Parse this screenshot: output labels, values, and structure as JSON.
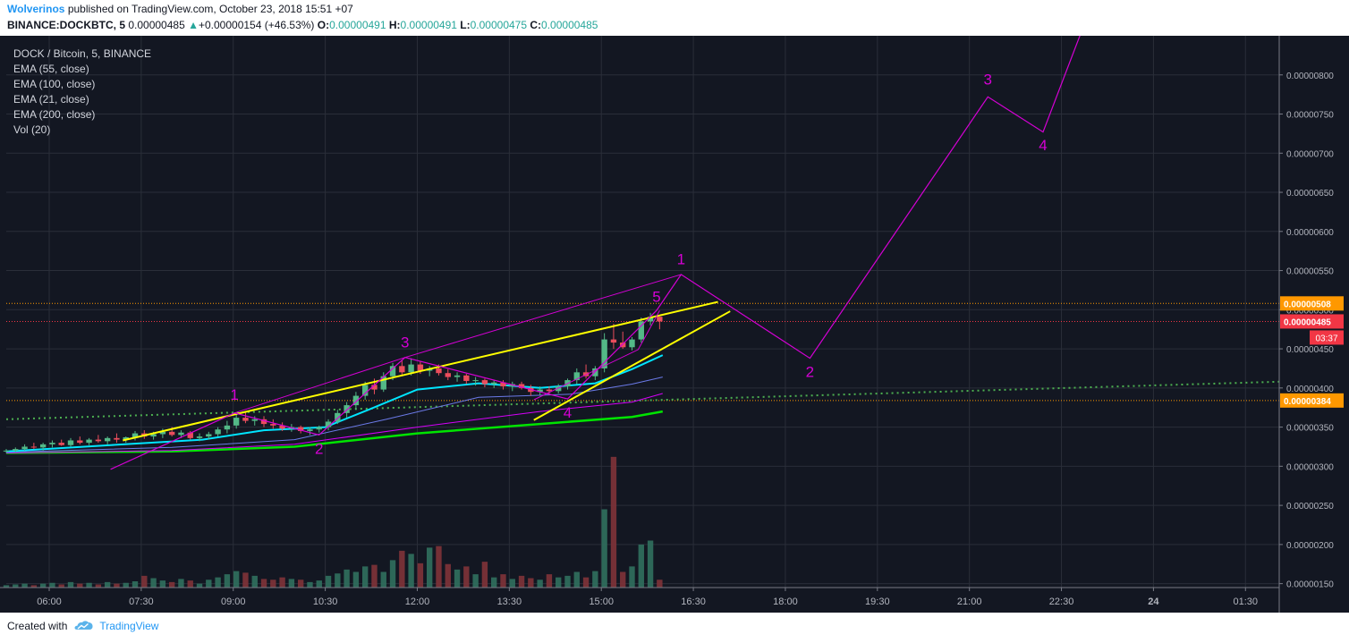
{
  "header": {
    "author": "Wolverinos",
    "published": "published on TradingView.com, October 23, 2018 15:51 +07",
    "symbol": "BINANCE:DOCKBTC, 5",
    "last_price": "0.00000485",
    "up_arrow": "▲",
    "change": "+0.00000154 (+46.53%)",
    "o_label": "O:",
    "o_value": "0.00000491",
    "h_label": "H:",
    "h_value": "0.00000491",
    "l_label": "L:",
    "l_value": "0.00000475",
    "c_label": "C:",
    "c_value": "0.00000485"
  },
  "legend": [
    "DOCK / Bitcoin, 5, BINANCE",
    "EMA (55, close)",
    "EMA (100, close)",
    "EMA (21, close)",
    "EMA (200, close)",
    "Vol (20)"
  ],
  "footer": {
    "created_with": "Created with",
    "brand": "TradingView"
  },
  "colors": {
    "background": "#131722",
    "grid": "#2a2e39",
    "axis_text": "#b2b5be",
    "bull": "#53b987",
    "bear": "#eb4d5c",
    "elliott": "#d500d5",
    "trendline": "#ffff00",
    "ema21": "#00e5ff",
    "ema55": "#6b7ae8",
    "ema100": "#d500f9",
    "ema200": "#00e400",
    "ema_dotted": "#4caf50",
    "price_tag": "#f23645",
    "level_tag": "#ff9800"
  },
  "chart_data": {
    "type": "candlestick",
    "x_ticks": [
      "06:00",
      "07:30",
      "09:00",
      "10:30",
      "12:00",
      "13:30",
      "15:00",
      "16:30",
      "18:00",
      "19:30",
      "21:00",
      "22:30",
      "24",
      "01:30"
    ],
    "x_range_hours": [
      5.3,
      26.05
    ],
    "y_ticks": [
      "0.00000800",
      "0.00000750",
      "0.00000700",
      "0.00000650",
      "0.00000600",
      "0.00000550",
      "0.00000500",
      "0.00000450",
      "0.00000400",
      "0.00000350",
      "0.00000300",
      "0.00000250",
      "0.00000200",
      "0.00000150"
    ],
    "y_range": [
      1.45,
      8.5
    ],
    "y_unit": "1e-6 BTC",
    "price_tags": [
      {
        "value": 5.08,
        "label": "0.00000508",
        "kind": "level"
      },
      {
        "value": 4.85,
        "label": "0.00000485",
        "kind": "price"
      },
      {
        "value": 3.84,
        "label": "0.00000384",
        "kind": "level"
      }
    ],
    "countdown": "03:37",
    "candles": [
      [
        5.3,
        3.2,
        3.22,
        3.17,
        3.2
      ],
      [
        5.45,
        3.2,
        3.24,
        3.18,
        3.22
      ],
      [
        5.6,
        3.22,
        3.28,
        3.2,
        3.25
      ],
      [
        5.75,
        3.25,
        3.3,
        3.22,
        3.24
      ],
      [
        5.9,
        3.24,
        3.3,
        3.2,
        3.28
      ],
      [
        6.05,
        3.28,
        3.33,
        3.24,
        3.3
      ],
      [
        6.2,
        3.3,
        3.34,
        3.26,
        3.27
      ],
      [
        6.35,
        3.27,
        3.36,
        3.25,
        3.33
      ],
      [
        6.5,
        3.33,
        3.38,
        3.28,
        3.3
      ],
      [
        6.65,
        3.3,
        3.36,
        3.27,
        3.34
      ],
      [
        6.8,
        3.34,
        3.4,
        3.3,
        3.32
      ],
      [
        6.95,
        3.32,
        3.38,
        3.28,
        3.36
      ],
      [
        7.1,
        3.36,
        3.42,
        3.3,
        3.34
      ],
      [
        7.25,
        3.34,
        3.38,
        3.3,
        3.37
      ],
      [
        7.4,
        3.37,
        3.45,
        3.33,
        3.42
      ],
      [
        7.55,
        3.42,
        3.46,
        3.35,
        3.38
      ],
      [
        7.7,
        3.38,
        3.44,
        3.34,
        3.41
      ],
      [
        7.85,
        3.41,
        3.48,
        3.36,
        3.44
      ],
      [
        8.0,
        3.44,
        3.5,
        3.38,
        3.4
      ],
      [
        8.15,
        3.4,
        3.46,
        3.36,
        3.43
      ],
      [
        8.3,
        3.43,
        3.45,
        3.34,
        3.36
      ],
      [
        8.45,
        3.36,
        3.42,
        3.32,
        3.38
      ],
      [
        8.6,
        3.38,
        3.44,
        3.34,
        3.41
      ],
      [
        8.75,
        3.41,
        3.5,
        3.38,
        3.47
      ],
      [
        8.9,
        3.47,
        3.58,
        3.42,
        3.52
      ],
      [
        9.05,
        3.52,
        3.68,
        3.48,
        3.62
      ],
      [
        9.2,
        3.62,
        3.7,
        3.55,
        3.58
      ],
      [
        9.35,
        3.58,
        3.64,
        3.52,
        3.6
      ],
      [
        9.5,
        3.6,
        3.64,
        3.5,
        3.54
      ],
      [
        9.65,
        3.54,
        3.6,
        3.48,
        3.52
      ],
      [
        9.8,
        3.52,
        3.56,
        3.45,
        3.48
      ],
      [
        9.95,
        3.48,
        3.54,
        3.44,
        3.5
      ],
      [
        10.1,
        3.5,
        3.52,
        3.42,
        3.45
      ],
      [
        10.25,
        3.45,
        3.5,
        3.4,
        3.47
      ],
      [
        10.4,
        3.47,
        3.52,
        3.43,
        3.5
      ],
      [
        10.55,
        3.5,
        3.6,
        3.46,
        3.57
      ],
      [
        10.7,
        3.57,
        3.72,
        3.54,
        3.68
      ],
      [
        10.85,
        3.68,
        3.82,
        3.62,
        3.78
      ],
      [
        11.0,
        3.78,
        3.95,
        3.72,
        3.9
      ],
      [
        11.15,
        3.9,
        4.08,
        3.85,
        4.04
      ],
      [
        11.3,
        4.04,
        4.12,
        3.92,
        3.98
      ],
      [
        11.45,
        3.98,
        4.2,
        3.95,
        4.15
      ],
      [
        11.6,
        4.15,
        4.32,
        4.1,
        4.28
      ],
      [
        11.75,
        4.28,
        4.35,
        4.15,
        4.2
      ],
      [
        11.9,
        4.2,
        4.38,
        4.16,
        4.3
      ],
      [
        12.05,
        4.3,
        4.34,
        4.18,
        4.22
      ],
      [
        12.2,
        4.22,
        4.28,
        4.15,
        4.25
      ],
      [
        12.35,
        4.25,
        4.3,
        4.16,
        4.19
      ],
      [
        12.5,
        4.19,
        4.24,
        4.1,
        4.14
      ],
      [
        12.65,
        4.14,
        4.2,
        4.08,
        4.16
      ],
      [
        12.8,
        4.16,
        4.18,
        4.05,
        4.09
      ],
      [
        12.95,
        4.09,
        4.14,
        4.03,
        4.1
      ],
      [
        13.1,
        4.1,
        4.12,
        4.01,
        4.05
      ],
      [
        13.25,
        4.05,
        4.1,
        4.0,
        4.07
      ],
      [
        13.4,
        4.07,
        4.1,
        3.98,
        4.02
      ],
      [
        13.55,
        4.02,
        4.08,
        3.96,
        4.05
      ],
      [
        13.7,
        4.05,
        4.08,
        3.98,
        4.0
      ],
      [
        13.85,
        4.0,
        4.04,
        3.9,
        3.95
      ],
      [
        14.0,
        3.95,
        4.02,
        3.9,
        3.98
      ],
      [
        14.15,
        3.98,
        4.02,
        3.92,
        3.96
      ],
      [
        14.3,
        3.96,
        4.05,
        3.93,
        4.02
      ],
      [
        14.45,
        4.02,
        4.12,
        3.98,
        4.1
      ],
      [
        14.6,
        4.1,
        4.25,
        4.05,
        4.2
      ],
      [
        14.75,
        4.2,
        4.3,
        4.12,
        4.15
      ],
      [
        14.9,
        4.15,
        4.28,
        4.1,
        4.25
      ],
      [
        15.05,
        4.25,
        4.7,
        4.2,
        4.62
      ],
      [
        15.2,
        4.62,
        4.82,
        4.5,
        4.58
      ],
      [
        15.35,
        4.58,
        4.72,
        4.5,
        4.52
      ],
      [
        15.5,
        4.52,
        4.65,
        4.48,
        4.62
      ],
      [
        15.65,
        4.62,
        4.9,
        4.58,
        4.85
      ],
      [
        15.8,
        4.85,
        4.96,
        4.8,
        4.91
      ],
      [
        15.95,
        4.91,
        4.91,
        4.75,
        4.85
      ]
    ],
    "volume": [
      [
        5.3,
        1.48
      ],
      [
        5.45,
        1.49
      ],
      [
        5.6,
        1.5
      ],
      [
        5.75,
        1.48
      ],
      [
        5.9,
        1.5
      ],
      [
        6.05,
        1.51
      ],
      [
        6.2,
        1.49
      ],
      [
        6.35,
        1.52
      ],
      [
        6.5,
        1.5
      ],
      [
        6.65,
        1.51
      ],
      [
        6.8,
        1.49
      ],
      [
        6.95,
        1.52
      ],
      [
        7.1,
        1.5
      ],
      [
        7.25,
        1.51
      ],
      [
        7.4,
        1.53
      ],
      [
        7.55,
        1.6
      ],
      [
        7.7,
        1.57
      ],
      [
        7.85,
        1.54
      ],
      [
        8.0,
        1.52
      ],
      [
        8.15,
        1.56
      ],
      [
        8.3,
        1.54
      ],
      [
        8.45,
        1.5
      ],
      [
        8.6,
        1.55
      ],
      [
        8.75,
        1.58
      ],
      [
        8.9,
        1.62
      ],
      [
        9.05,
        1.66
      ],
      [
        9.2,
        1.64
      ],
      [
        9.35,
        1.6
      ],
      [
        9.5,
        1.56
      ],
      [
        9.65,
        1.55
      ],
      [
        9.8,
        1.58
      ],
      [
        9.95,
        1.56
      ],
      [
        10.1,
        1.55
      ],
      [
        10.25,
        1.52
      ],
      [
        10.4,
        1.54
      ],
      [
        10.55,
        1.6
      ],
      [
        10.7,
        1.63
      ],
      [
        10.85,
        1.68
      ],
      [
        11.0,
        1.65
      ],
      [
        11.15,
        1.72
      ],
      [
        11.3,
        1.74
      ],
      [
        11.45,
        1.65
      ],
      [
        11.6,
        1.8
      ],
      [
        11.75,
        1.92
      ],
      [
        11.9,
        1.88
      ],
      [
        12.05,
        1.76
      ],
      [
        12.2,
        1.96
      ],
      [
        12.35,
        1.98
      ],
      [
        12.5,
        1.75
      ],
      [
        12.65,
        1.68
      ],
      [
        12.8,
        1.72
      ],
      [
        12.95,
        1.62
      ],
      [
        13.1,
        1.78
      ],
      [
        13.25,
        1.58
      ],
      [
        13.4,
        1.62
      ],
      [
        13.55,
        1.56
      ],
      [
        13.7,
        1.6
      ],
      [
        13.85,
        1.57
      ],
      [
        14.0,
        1.55
      ],
      [
        14.15,
        1.62
      ],
      [
        14.3,
        1.58
      ],
      [
        14.45,
        1.6
      ],
      [
        14.6,
        1.65
      ],
      [
        14.75,
        1.58
      ],
      [
        14.9,
        1.66
      ],
      [
        15.05,
        2.45
      ],
      [
        15.2,
        3.12
      ],
      [
        15.35,
        1.65
      ],
      [
        15.5,
        1.72
      ],
      [
        15.65,
        2.0
      ],
      [
        15.8,
        2.05
      ],
      [
        15.95,
        1.55
      ]
    ],
    "ema21": [
      [
        5.3,
        3.19
      ],
      [
        7.0,
        3.27
      ],
      [
        8.5,
        3.34
      ],
      [
        9.5,
        3.46
      ],
      [
        10.5,
        3.5
      ],
      [
        11.2,
        3.72
      ],
      [
        12.0,
        3.98
      ],
      [
        13.0,
        4.06
      ],
      [
        14.0,
        4.0
      ],
      [
        14.9,
        4.06
      ],
      [
        15.5,
        4.24
      ],
      [
        16.0,
        4.42
      ]
    ],
    "ema55": [
      [
        5.3,
        3.18
      ],
      [
        8.0,
        3.24
      ],
      [
        10.0,
        3.34
      ],
      [
        11.5,
        3.6
      ],
      [
        13.0,
        3.88
      ],
      [
        14.5,
        3.92
      ],
      [
        15.5,
        4.05
      ],
      [
        16.0,
        4.14
      ]
    ],
    "ema100": [
      [
        5.3,
        3.17
      ],
      [
        8.0,
        3.2
      ],
      [
        10.0,
        3.28
      ],
      [
        12.0,
        3.5
      ],
      [
        14.0,
        3.7
      ],
      [
        15.5,
        3.82
      ],
      [
        16.0,
        3.93
      ]
    ],
    "ema200": [
      [
        5.3,
        3.17
      ],
      [
        8.0,
        3.19
      ],
      [
        10.0,
        3.25
      ],
      [
        12.0,
        3.42
      ],
      [
        14.0,
        3.54
      ],
      [
        15.5,
        3.63
      ],
      [
        16.0,
        3.7
      ]
    ],
    "ema_dotted": [
      [
        5.3,
        3.6
      ],
      [
        26.05,
        4.08
      ]
    ],
    "trendlines": [
      [
        [
          7.2,
          3.33
        ],
        [
          16.9,
          5.1
        ]
      ],
      [
        [
          13.9,
          3.59
        ],
        [
          17.1,
          4.98
        ]
      ]
    ],
    "elliott_path": [
      [
        7.0,
        2.96
      ],
      [
        9.02,
        3.68
      ],
      [
        10.4,
        3.4
      ],
      [
        11.8,
        4.39
      ],
      [
        14.45,
        3.86
      ],
      [
        15.9,
        4.99
      ],
      [
        16.3,
        5.45
      ],
      [
        18.4,
        4.38
      ],
      [
        21.3,
        7.72
      ],
      [
        22.2,
        7.27
      ],
      [
        22.85,
        8.6
      ]
    ],
    "elliott_small": [
      [
        13.9,
        3.85
      ],
      [
        15.6,
        4.49
      ],
      [
        15.95,
        4.99
      ]
    ],
    "wave_labels": [
      {
        "t": 9.02,
        "v": 3.85,
        "text": "1"
      },
      {
        "t": 10.4,
        "v": 3.16,
        "text": "2"
      },
      {
        "t": 11.8,
        "v": 4.52,
        "text": "3"
      },
      {
        "t": 14.45,
        "v": 3.62,
        "text": "4"
      },
      {
        "t": 15.9,
        "v": 5.1,
        "text": "5"
      },
      {
        "t": 16.3,
        "v": 5.58,
        "text": "1"
      },
      {
        "t": 18.4,
        "v": 4.14,
        "text": "2"
      },
      {
        "t": 21.3,
        "v": 7.88,
        "text": "3"
      },
      {
        "t": 22.2,
        "v": 7.04,
        "text": "4"
      }
    ]
  }
}
